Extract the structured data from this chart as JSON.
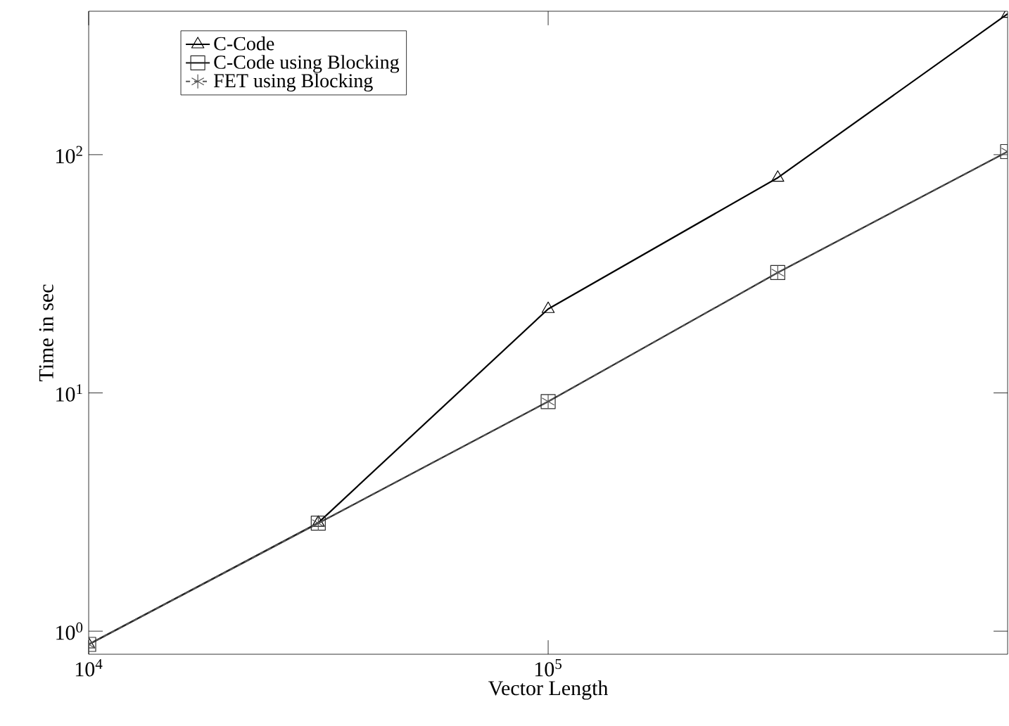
{
  "chart_data": {
    "type": "line",
    "xlabel": "Vector Length",
    "ylabel": "Time in sec",
    "log": "xy",
    "xlim": [
      10000,
      1000000
    ],
    "ylim": [
      0.8,
      400
    ],
    "xticks": [
      {
        "value": 10000,
        "label": "10$^{4}$"
      },
      {
        "value": 100000,
        "label": "10$^{5}$"
      }
    ],
    "yticks": [
      {
        "value": 1,
        "label": "10$^{0}$"
      },
      {
        "value": 10,
        "label": "10$^{1}$"
      },
      {
        "value": 100,
        "label": "10$^{2}$"
      }
    ],
    "x": [
      10000,
      31600,
      100000,
      316000,
      1000000
    ],
    "legend": "top left",
    "grid": false,
    "series": [
      {
        "name": "C-Code",
        "color": "#000000",
        "marker": "triangle",
        "values": [
          0.88,
          2.85,
          22.5,
          80,
          390
        ]
      },
      {
        "name": "C-Code using Blocking",
        "color": "#2b2b2b",
        "marker": "square",
        "values": [
          0.88,
          2.84,
          9.2,
          32,
          103
        ]
      },
      {
        "name": "FET using Blocking",
        "color": "#555555",
        "marker": "cross",
        "line_style": "dashed",
        "values": [
          0.88,
          2.84,
          9.2,
          32,
          103
        ]
      }
    ]
  }
}
